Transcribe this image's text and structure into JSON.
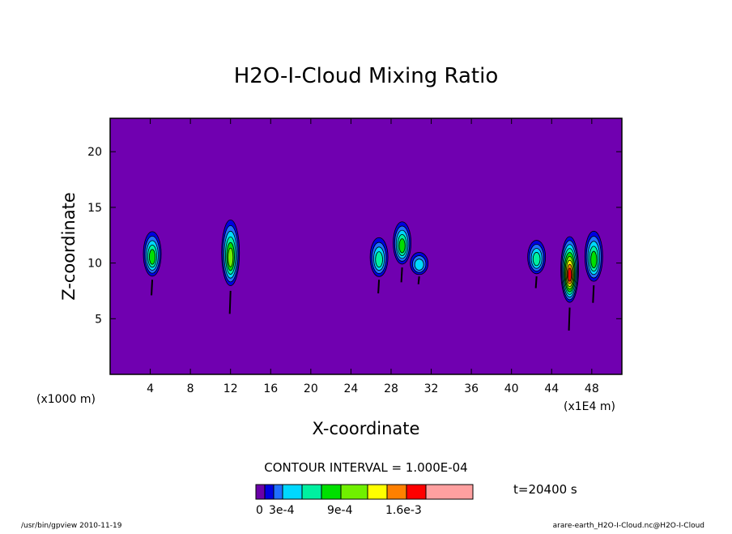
{
  "chart_data": {
    "type": "heatmap",
    "title": "H2O-I-Cloud Mixing Ratio",
    "xlabel": "X-coordinate",
    "ylabel": "Z-coordinate",
    "x_unit_left": "(x1000 m)",
    "x_unit_right": "(x1E4 m)",
    "xlim": [
      0,
      51
    ],
    "ylim": [
      0,
      23
    ],
    "x_ticks": [
      4,
      8,
      12,
      16,
      20,
      24,
      28,
      32,
      36,
      40,
      44,
      48
    ],
    "y_ticks": [
      5,
      10,
      15,
      20
    ],
    "background_color": "#7000b0",
    "contour_interval_text": "CONTOUR INTERVAL = 1.000E-04",
    "time_text": "t=20400 s",
    "colorbar": {
      "colors": [
        "#6a00a8",
        "#0000e0",
        "#2070ff",
        "#00d8ff",
        "#00f0a0",
        "#00e000",
        "#70f000",
        "#ffff00",
        "#ff8000",
        "#ff0000",
        "#ffa0a0"
      ],
      "labels": [
        "0",
        "3e-4",
        "9e-4",
        "1.6e-3"
      ]
    },
    "clouds": [
      {
        "x": 4.2,
        "zbot": 8.5,
        "ztop": 12.5,
        "max": 5
      },
      {
        "x": 12.0,
        "zbot": 7.5,
        "ztop": 13.4,
        "max": 6
      },
      {
        "x": 26.8,
        "zbot": 8.5,
        "ztop": 12.0,
        "max": 4
      },
      {
        "x": 29.1,
        "zbot": 9.6,
        "ztop": 13.4,
        "max": 5
      },
      {
        "x": 30.8,
        "zbot": 8.8,
        "ztop": 10.8,
        "max": 3
      },
      {
        "x": 42.5,
        "zbot": 8.8,
        "ztop": 11.8,
        "max": 4
      },
      {
        "x": 45.8,
        "zbot": 6.0,
        "ztop": 11.9,
        "max": 9
      },
      {
        "x": 48.2,
        "zbot": 8.0,
        "ztop": 12.5,
        "max": 5
      }
    ]
  },
  "footer": {
    "left": "/usr/bin/gpview   2010-11-19",
    "right": "arare-earth_H2O-I-Cloud.nc@H2O-I-Cloud"
  }
}
